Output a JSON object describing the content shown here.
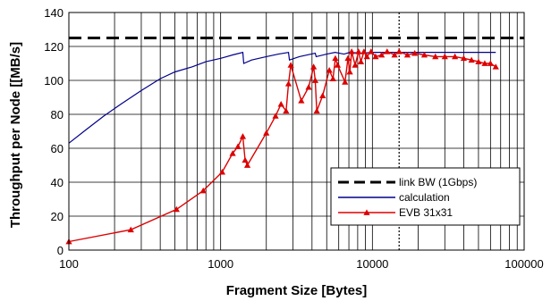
{
  "chart_data": {
    "type": "line",
    "xlabel": "Fragment Size [Bytes]",
    "ylabel": "Throughput per Node [[MB/s]",
    "xscale": "log",
    "xlim": [
      100,
      100000
    ],
    "ylim": [
      0,
      140
    ],
    "xticks": [
      "100",
      "1000",
      "10000",
      "100000"
    ],
    "yticks": [
      "0",
      "20",
      "40",
      "60",
      "80",
      "100",
      "120",
      "140"
    ],
    "grid": true,
    "legend_position": "bottom-right",
    "reference_line_x": 15000,
    "series": [
      {
        "name": "link BW (1Gbps)",
        "style": "dashed",
        "color": "#000000",
        "x": [
          100,
          100000
        ],
        "y": [
          125,
          125
        ]
      },
      {
        "name": "calculation",
        "style": "solid",
        "color": "#00008b",
        "x": [
          100,
          130,
          170,
          220,
          300,
          400,
          500,
          650,
          800,
          1000,
          1200,
          1400,
          1420,
          1600,
          2000,
          2400,
          2800,
          2840,
          3300,
          4200,
          4260,
          5000,
          5680,
          6500,
          7100,
          8500,
          10000,
          15000,
          20000,
          30000,
          40000,
          65000
        ],
        "y": [
          63,
          71,
          79,
          86,
          94,
          101,
          105,
          108,
          111,
          113,
          115,
          116.5,
          110,
          112,
          114,
          115.5,
          116.5,
          112,
          114,
          116,
          114,
          115.5,
          116.5,
          115.5,
          116.5,
          116,
          116.5,
          116.5,
          116.5,
          116.5,
          116.5,
          116.5
        ]
      },
      {
        "name": "EVB 31x31",
        "style": "solid-markers",
        "color": "#dd0000",
        "x": [
          100,
          256,
          512,
          768,
          1024,
          1200,
          1300,
          1400,
          1450,
          1500,
          2000,
          2300,
          2500,
          2700,
          2800,
          2900,
          3400,
          3800,
          4100,
          4200,
          4300,
          4700,
          5200,
          5500,
          5700,
          5900,
          6600,
          6900,
          7100,
          7300,
          7700,
          8100,
          8400,
          8800,
          9200,
          9800,
          10500,
          11500,
          12500,
          14000,
          15000,
          17000,
          19000,
          22000,
          26000,
          30000,
          35000,
          40000,
          45000,
          50000,
          55000,
          60000,
          65000
        ],
        "y": [
          5,
          12,
          24,
          35,
          46,
          57,
          61,
          67,
          53,
          50,
          69,
          79,
          86,
          82,
          98,
          109,
          88,
          96,
          108,
          100,
          82,
          91,
          106,
          101,
          113,
          109,
          99,
          113,
          105,
          117,
          109,
          117,
          111,
          117,
          114,
          117,
          114,
          115,
          117,
          115,
          117,
          115,
          116,
          115,
          114,
          114,
          114,
          113,
          112,
          111,
          110,
          110,
          108
        ]
      }
    ]
  }
}
